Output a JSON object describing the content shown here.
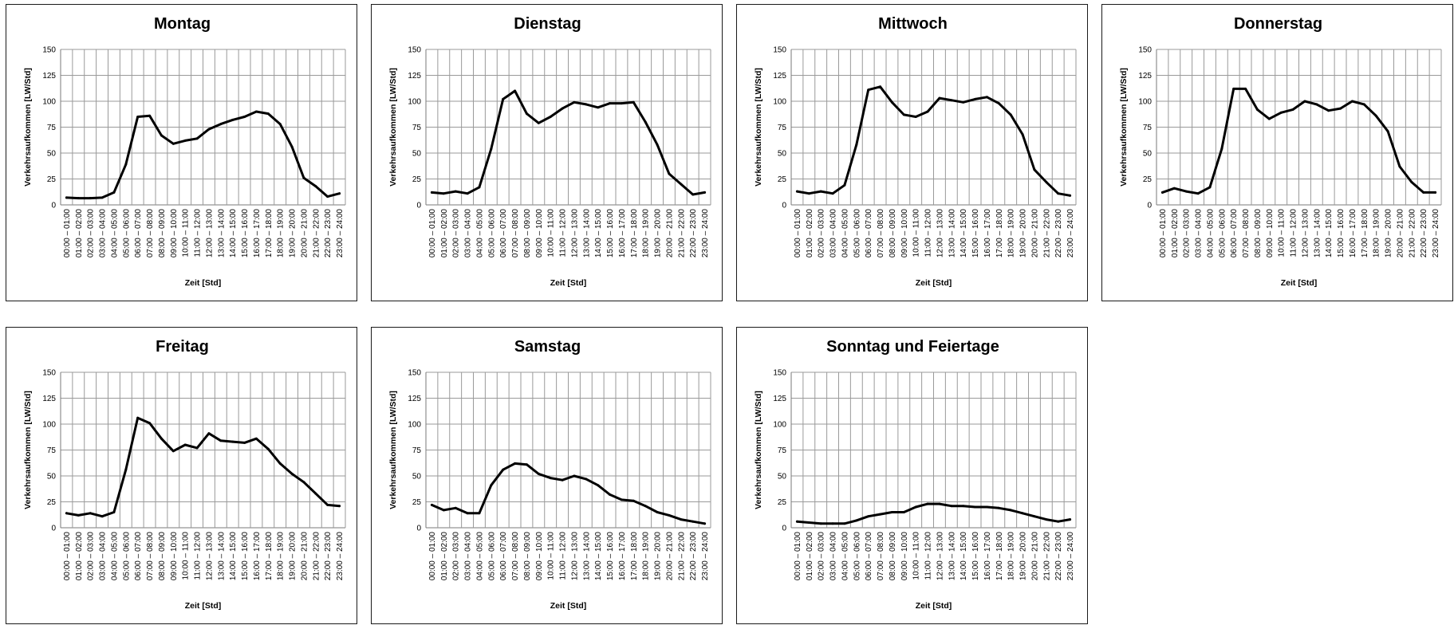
{
  "chart_data": [
    {
      "type": "line",
      "title": "Montag",
      "xlabel": "Zeit [Std]",
      "ylabel": "Verkehrsaufkommen [LW/Std]",
      "ylim": [
        0,
        150
      ],
      "yticks": [
        "0",
        "25",
        "50",
        "75",
        "100",
        "125",
        "150"
      ],
      "grid": true,
      "categories": [
        "00:00 – 01:00",
        "01:00 – 02:00",
        "02:00 – 03:00",
        "03:00 – 04:00",
        "04:00 – 05:00",
        "05:00 – 06:00",
        "06:00 – 07:00",
        "07:00 – 08:00",
        "08:00 – 09:00",
        "09:00 – 10:00",
        "10:00 – 11:00",
        "11:00 – 12:00",
        "12:00 – 13:00",
        "13:00 – 14:00",
        "14:00 – 15:00",
        "15:00 – 16:00",
        "16:00 – 17:00",
        "17:00 – 18:00",
        "18:00 – 19:00",
        "19:00 – 20:00",
        "20:00 – 21:00",
        "21:00 – 22:00",
        "22:00 – 23:00",
        "23:00 – 24:00"
      ],
      "values": [
        7,
        6.5,
        6.5,
        7,
        12,
        39,
        85,
        86,
        67,
        59,
        62,
        64,
        73,
        78,
        82,
        85,
        90,
        88,
        78,
        56,
        26,
        18,
        8,
        11
      ]
    },
    {
      "type": "line",
      "title": "Dienstag",
      "xlabel": "Zeit [Std]",
      "ylabel": "Verkehrsaufkommen [LW/Std]",
      "ylim": [
        0,
        150
      ],
      "yticks": [
        "0",
        "25",
        "50",
        "75",
        "100",
        "125",
        "150"
      ],
      "grid": true,
      "categories": [
        "00:00 – 01:00",
        "01:00 – 02:00",
        "02:00 – 03:00",
        "03:00 – 04:00",
        "04:00 – 05:00",
        "05:00 – 06:00",
        "06:00 – 07:00",
        "07:00 – 08:00",
        "08:00 – 09:00",
        "09:00 – 10:00",
        "10:00 – 11:00",
        "11:00 – 12:00",
        "12:00 – 13:00",
        "13:00 – 14:00",
        "14:00 – 15:00",
        "15:00 – 16:00",
        "16:00 – 17:00",
        "17:00 – 18:00",
        "18:00 – 19:00",
        "19:00 – 20:00",
        "20:00 – 21:00",
        "21:00 – 22:00",
        "22:00 – 23:00",
        "23:00 – 24:00"
      ],
      "values": [
        12,
        11,
        13,
        11,
        17,
        54,
        102,
        110,
        88,
        79,
        85,
        93,
        99,
        97,
        94,
        98,
        98,
        99,
        80,
        58,
        30,
        20,
        10,
        12
      ]
    },
    {
      "type": "line",
      "title": "Mittwoch",
      "xlabel": "Zeit [Std]",
      "ylabel": "Verkehrsaufkommen [LW/Std]",
      "ylim": [
        0,
        150
      ],
      "yticks": [
        "0",
        "25",
        "50",
        "75",
        "100",
        "125",
        "150"
      ],
      "grid": true,
      "categories": [
        "00:00 – 01:00",
        "01:00 – 02:00",
        "02:00 – 03:00",
        "03:00 – 04:00",
        "04:00 – 05:00",
        "05:00 – 06:00",
        "06:00 – 07:00",
        "07:00 – 08:00",
        "08:00 – 09:00",
        "09:00 – 10:00",
        "10:00 – 11:00",
        "11:00 – 12:00",
        "12:00 – 13:00",
        "13:00 – 14:00",
        "14:00 – 15:00",
        "15:00 – 16:00",
        "16:00 – 17:00",
        "17:00 – 18:00",
        "18:00 – 19:00",
        "19:00 – 20:00",
        "20:00 – 21:00",
        "21:00 – 22:00",
        "22:00 – 23:00",
        "23:00 – 24:00"
      ],
      "values": [
        13,
        11,
        13,
        11,
        19,
        58,
        111,
        114,
        99,
        87,
        85,
        90,
        103,
        101,
        99,
        102,
        104,
        98,
        87,
        68,
        34,
        22,
        11,
        9
      ]
    },
    {
      "type": "line",
      "title": "Donnerstag",
      "xlabel": "Zeit [Std]",
      "ylabel": "Verkehrsaufkommen [LW/Std]",
      "ylim": [
        0,
        150
      ],
      "yticks": [
        "0",
        "25",
        "50",
        "75",
        "100",
        "125",
        "150"
      ],
      "grid": true,
      "categories": [
        "00:00 – 01:00",
        "01:00 – 02:00",
        "02:00 – 03:00",
        "03:00 – 04:00",
        "04:00 – 05:00",
        "05:00 – 06:00",
        "06:00 – 07:00",
        "07:00 – 08:00",
        "08:00 – 09:00",
        "09:00 – 10:00",
        "10:00 – 11:00",
        "11:00 – 12:00",
        "12:00 – 13:00",
        "13:00 – 14:00",
        "14:00 – 15:00",
        "15:00 – 16:00",
        "16:00 – 17:00",
        "17:00 – 18:00",
        "18:00 – 19:00",
        "19:00 – 20:00",
        "20:00 – 21:00",
        "21:00 – 22:00",
        "22:00 – 23:00",
        "23:00 – 24:00"
      ],
      "values": [
        12,
        16,
        13,
        11,
        17,
        54,
        112,
        112,
        92,
        83,
        89,
        92,
        100,
        97,
        91,
        93,
        100,
        97,
        86,
        71,
        37,
        22,
        12,
        12
      ]
    },
    {
      "type": "line",
      "title": "Freitag",
      "xlabel": "Zeit [Std]",
      "ylabel": "Verkehrsaufkommen [LW/Std]",
      "ylim": [
        0,
        150
      ],
      "yticks": [
        "0",
        "25",
        "50",
        "75",
        "100",
        "125",
        "150"
      ],
      "grid": true,
      "categories": [
        "00:00 – 01:00",
        "01:00 – 02:00",
        "02:00 – 03:00",
        "03:00 – 04:00",
        "04:00 – 05:00",
        "05:00 – 06:00",
        "06:00 – 07:00",
        "07:00 – 08:00",
        "08:00 – 09:00",
        "09:00 – 10:00",
        "10:00 – 11:00",
        "11:00 – 12:00",
        "12:00 – 13:00",
        "13:00 – 14:00",
        "14:00 – 15:00",
        "15:00 – 16:00",
        "16:00 – 17:00",
        "17:00 – 18:00",
        "18:00 – 19:00",
        "19:00 – 20:00",
        "20:00 – 21:00",
        "21:00 – 22:00",
        "22:00 – 23:00",
        "23:00 – 24:00"
      ],
      "values": [
        14,
        12,
        14,
        11,
        15,
        56,
        106,
        101,
        86,
        74,
        80,
        77,
        91,
        84,
        83,
        82,
        86,
        76,
        62,
        52,
        44,
        33,
        22,
        21
      ]
    },
    {
      "type": "line",
      "title": "Samstag",
      "xlabel": "Zeit [Std]",
      "ylabel": "Verkehrsaufkommen [LW/Std]",
      "ylim": [
        0,
        150
      ],
      "yticks": [
        "0",
        "25",
        "50",
        "75",
        "100",
        "125",
        "150"
      ],
      "grid": true,
      "categories": [
        "00:00 – 01:00",
        "01:00 – 02:00",
        "02:00 – 03:00",
        "03:00 – 04:00",
        "04:00 – 05:00",
        "05:00 – 06:00",
        "06:00 – 07:00",
        "07:00 – 08:00",
        "08:00 – 09:00",
        "09:00 – 10:00",
        "10:00 – 11:00",
        "11:00 – 12:00",
        "12:00 – 13:00",
        "13:00 – 14:00",
        "14:00 – 15:00",
        "15:00 – 16:00",
        "16:00 – 17:00",
        "17:00 – 18:00",
        "18:00 – 19:00",
        "19:00 – 20:00",
        "20:00 – 21:00",
        "21:00 – 22:00",
        "22:00 – 23:00",
        "23:00 – 24:00"
      ],
      "values": [
        22,
        17,
        19,
        14,
        14,
        41,
        56,
        62,
        61,
        52,
        48,
        46,
        50,
        47,
        41,
        32,
        27,
        26,
        21,
        15,
        12,
        8,
        6,
        4
      ]
    },
    {
      "type": "line",
      "title": "Sonntag und Feiertage",
      "xlabel": "Zeit [Std]",
      "ylabel": "Verkehrsaufkommen [LW/Std]",
      "ylim": [
        0,
        150
      ],
      "yticks": [
        "0",
        "25",
        "50",
        "75",
        "100",
        "125",
        "150"
      ],
      "grid": true,
      "categories": [
        "00:00 – 01:00",
        "01:00 – 02:00",
        "02:00 – 03:00",
        "03:00 – 04:00",
        "04:00 – 05:00",
        "05:00 – 06:00",
        "06:00 – 07:00",
        "07:00 – 08:00",
        "08:00 – 09:00",
        "09:00 – 10:00",
        "10:00 – 11:00",
        "11:00 – 12:00",
        "12:00 – 13:00",
        "13:00 – 14:00",
        "14:00 – 15:00",
        "15:00 – 16:00",
        "16:00 – 17:00",
        "17:00 – 18:00",
        "18:00 – 19:00",
        "19:00 – 20:00",
        "20:00 – 21:00",
        "21:00 – 22:00",
        "22:00 – 23:00",
        "23:00 – 24:00"
      ],
      "values": [
        6,
        5,
        4,
        4,
        4,
        7,
        11,
        13,
        15,
        15,
        20,
        23,
        23,
        21,
        21,
        20,
        20,
        19,
        17,
        14,
        11,
        8,
        6,
        8
      ]
    }
  ]
}
